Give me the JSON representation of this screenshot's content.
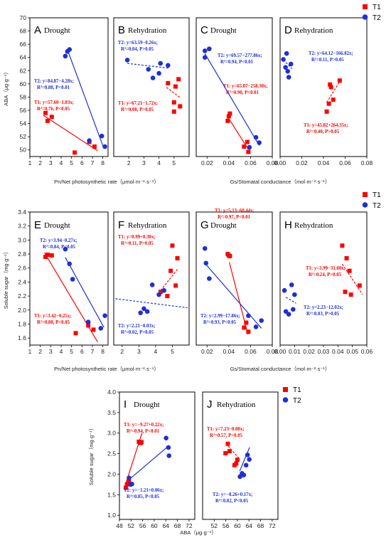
{
  "legend": {
    "t1_label": "T1",
    "t2_label": "T2"
  },
  "colors": {
    "t1": "#ff0000",
    "t2": "#1f2fd6"
  },
  "chart_data": [
    {
      "panel": "A",
      "condition": "Drought",
      "type": "scatter",
      "xlabel": "Pn/Net photosynthetic rate（μmol·m⁻²·s⁻¹）",
      "ylabel": "ABA（μg·g⁻¹）",
      "xlim": [
        1,
        8.5
      ],
      "ylim": [
        49,
        70
      ],
      "xticks": [
        1,
        2,
        3,
        4,
        5,
        6,
        7,
        8
      ],
      "yticks": [
        50,
        52,
        54,
        56,
        58,
        60,
        62,
        64,
        66,
        68,
        70
      ],
      "series": [
        {
          "name": "T1",
          "points": [
            [
              2.5,
              55.6
            ],
            [
              2.7,
              54.4
            ],
            [
              3.1,
              55.0
            ],
            [
              5.3,
              49.6
            ],
            [
              6.7,
              51.2
            ],
            [
              7.2,
              50.5
            ]
          ],
          "fit": {
            "slope": -1.03,
            "intercept": 57.6,
            "x_range": [
              2.3,
              7.5
            ],
            "style": "solid"
          },
          "equation": "T1: y=57.60−1.03x;",
          "stats": "R²=0.76, P<0.05"
        },
        {
          "name": "T2",
          "points": [
            [
              4.4,
              64.2
            ],
            [
              4.6,
              64.9
            ],
            [
              4.8,
              65.2
            ],
            [
              6.7,
              51.4
            ],
            [
              7.9,
              52.1
            ],
            [
              8.2,
              50.5
            ]
          ],
          "fit": {
            "slope": -4.28,
            "intercept": 84.87,
            "x_range": [
              4.6,
              8.1
            ],
            "style": "solid"
          },
          "equation": "T2: y=84.87−4.28x;",
          "stats": "R²=0.88, P<0.01"
        }
      ]
    },
    {
      "panel": "B",
      "condition": "Rehydration",
      "type": "scatter",
      "xlabel": "",
      "ylabel": "",
      "xlim": [
        1,
        6
      ],
      "ylim": [
        49,
        70
      ],
      "xticks": [
        2,
        3,
        4,
        5
      ],
      "yticks": [],
      "series": [
        {
          "name": "T1",
          "points": [
            [
              4.6,
              60.1
            ],
            [
              5.1,
              59.6
            ],
            [
              5.3,
              60.7
            ],
            [
              5.0,
              57.2
            ],
            [
              5.0,
              55.8
            ],
            [
              5.4,
              56.6
            ]
          ],
          "fit": {
            "slope": -1.72,
            "intercept": 67.21,
            "x_range": [
              4.5,
              5.4
            ],
            "style": "dashed"
          },
          "equation": "T1: y=67.21−1.72x;",
          "stats": "R²=0.08, P>0.05"
        },
        {
          "name": "T2",
          "points": [
            [
              1.9,
              63.6
            ],
            [
              3.3,
              62.2
            ],
            [
              3.6,
              60.9
            ],
            [
              4.0,
              61.6
            ],
            [
              4.1,
              63.1
            ],
            [
              4.6,
              62.8
            ]
          ],
          "fit": {
            "slope": -0.26,
            "intercept": 63.59,
            "x_range": [
              1.9,
              4.7
            ],
            "style": "dashed"
          },
          "equation": "T2: y=63.59−0.26x;",
          "stats": "R²=0.04, P>0.05"
        }
      ]
    },
    {
      "panel": "C",
      "condition": "Drought",
      "type": "scatter",
      "xlabel": "Gs/Stomatal conductance（mol·m⁻²·s⁻¹）",
      "ylabel": "",
      "xlim": [
        0.01,
        0.08
      ],
      "ylim": [
        49,
        70
      ],
      "xticks": [
        0.02,
        0.04,
        0.06,
        0.08
      ],
      "yticks": [],
      "series": [
        {
          "name": "T1",
          "points": [
            [
              0.039,
              54.4
            ],
            [
              0.04,
              55.1
            ],
            [
              0.041,
              55.5
            ],
            [
              0.054,
              50.5
            ],
            [
              0.057,
              51.2
            ],
            [
              0.058,
              49.7
            ]
          ],
          "fit": {
            "slope": -258.3,
            "intercept": 65.07,
            "x_range": [
              0.039,
              0.058
            ],
            "style": "solid"
          },
          "equation": "T1: y=65.07−258.30x;",
          "stats": "R²=0.90, P<0.01"
        },
        {
          "name": "T2",
          "points": [
            [
              0.018,
              64.0
            ],
            [
              0.018,
              65.0
            ],
            [
              0.022,
              65.3
            ],
            [
              0.059,
              50.4
            ],
            [
              0.065,
              51.9
            ],
            [
              0.068,
              51.1
            ]
          ],
          "fit": {
            "slope": -277.86,
            "intercept": 69.57,
            "x_range": [
              0.018,
              0.068
            ],
            "style": "solid"
          },
          "equation": "T2: y=69.57−277.86x;",
          "stats": "R²=0.94, P<0.01"
        }
      ]
    },
    {
      "panel": "D",
      "condition": "Rehydration",
      "type": "scatter",
      "xlabel": "",
      "ylabel": "",
      "xlim": [
        0,
        0.08
      ],
      "ylim": [
        49,
        70
      ],
      "xticks": [
        0.0,
        0.02,
        0.04,
        0.06,
        0.08
      ],
      "yticks": [],
      "series": [
        {
          "name": "T1",
          "points": [
            [
              0.043,
              55.8
            ],
            [
              0.045,
              57.0
            ],
            [
              0.046,
              59.9
            ],
            [
              0.047,
              59.5
            ],
            [
              0.049,
              57.6
            ],
            [
              0.055,
              60.5
            ]
          ],
          "fit": {
            "slope": 264.35,
            "intercept": 45.82,
            "x_range": [
              0.043,
              0.055
            ],
            "style": "dashed"
          },
          "equation": "T1: y=45.82+264.35x;",
          "stats": "R²=0.40, P>0.05"
        },
        {
          "name": "T2",
          "points": [
            [
              0.003,
              63.7
            ],
            [
              0.005,
              62.5
            ],
            [
              0.006,
              64.6
            ],
            [
              0.007,
              61.9
            ],
            [
              0.008,
              61.0
            ],
            [
              0.01,
              63.0
            ]
          ],
          "fit": {
            "slope": -166.82,
            "intercept": 64.12,
            "x_range": [
              0.003,
              0.011
            ],
            "style": "dashed"
          },
          "equation": "T2: y=64.12−166.82x;",
          "stats": "R²=0.11, P>0.05"
        }
      ]
    },
    {
      "panel": "E",
      "condition": "Drought",
      "type": "scatter",
      "xlabel": "Pn/Net photosynthetic rate（μmol·m⁻²·s⁻¹）",
      "ylabel": "Soluble sugar（mg·g⁻¹）",
      "xlim": [
        1,
        8.5
      ],
      "ylim": [
        1.5,
        3.4
      ],
      "xticks": [
        1,
        2,
        3,
        4,
        5,
        6,
        7,
        8
      ],
      "yticks": [
        1.6,
        1.8,
        2.0,
        2.2,
        2.4,
        2.6,
        2.8,
        3.0,
        3.2,
        3.4
      ],
      "series": [
        {
          "name": "T1",
          "points": [
            [
              2.5,
              2.76
            ],
            [
              2.7,
              2.79
            ],
            [
              3.1,
              2.78
            ],
            [
              5.4,
              1.67
            ],
            [
              6.6,
              1.78
            ],
            [
              7.1,
              1.72
            ]
          ],
          "fit": {
            "slope": -0.25,
            "intercept": 3.42,
            "x_range": [
              2.4,
              7.5
            ],
            "style": "solid"
          },
          "equation": "T1: y=3.42−0.25x;",
          "stats": "R²=0.88, P<0.05"
        },
        {
          "name": "T2",
          "points": [
            [
              4.4,
              2.87
            ],
            [
              4.8,
              2.66
            ],
            [
              5.1,
              2.44
            ],
            [
              6.6,
              1.83
            ],
            [
              7.8,
              1.74
            ],
            [
              8.2,
              1.92
            ]
          ],
          "fit": {
            "slope": -0.27,
            "intercept": 3.94,
            "x_range": [
              4.4,
              8.1
            ],
            "style": "solid"
          },
          "equation": "T2: y=3.94−0.27x;",
          "stats": "R²=0.84, P<0.05"
        }
      ]
    },
    {
      "panel": "F",
      "condition": "Rehydration",
      "type": "scatter",
      "xlabel": "",
      "ylabel": "",
      "xlim": [
        1.5,
        6
      ],
      "ylim": [
        1.5,
        3.4
      ],
      "xticks": [
        2,
        3,
        4,
        5
      ],
      "yticks": [],
      "series": [
        {
          "name": "T1",
          "points": [
            [
              4.3,
              2.26
            ],
            [
              4.7,
              2.2
            ],
            [
              4.9,
              2.56
            ],
            [
              5.0,
              2.92
            ],
            [
              5.2,
              2.35
            ],
            [
              5.3,
              2.74
            ]
          ],
          "fit": {
            "slope": 0.3,
            "intercept": 0.99,
            "x_range": [
              4.3,
              5.3
            ],
            "style": "dashed"
          },
          "equation": "T1: y=0.99+0.30x;",
          "stats": "R²=0.11, P>0.05"
        },
        {
          "name": "T2",
          "points": [
            [
              3.1,
              1.96
            ],
            [
              3.3,
              2.02
            ],
            [
              3.5,
              1.98
            ],
            [
              3.8,
              2.36
            ],
            [
              4.2,
              2.22
            ],
            [
              4.5,
              2.28
            ]
          ],
          "fit": {
            "slope": -0.03,
            "intercept": 2.21,
            "x_range": [
              1.6,
              5.9
            ],
            "style": "dashed"
          },
          "equation": "T2: y=2.21−0.03x;",
          "stats": "R²=0.02, P>0.05"
        }
      ]
    },
    {
      "panel": "G",
      "condition": "Drought",
      "type": "scatter",
      "xlabel": "Gs/Stomatal conductance（mol·m⁻²·s⁻¹）",
      "ylabel": "",
      "xlim": [
        0.01,
        0.08
      ],
      "ylim": [
        1.5,
        3.4
      ],
      "xticks": [
        0.02,
        0.04,
        0.06,
        0.08
      ],
      "yticks": [],
      "series": [
        {
          "name": "T1",
          "points": [
            [
              0.039,
              2.8
            ],
            [
              0.04,
              2.78
            ],
            [
              0.041,
              2.77
            ],
            [
              0.054,
              1.75
            ],
            [
              0.056,
              1.82
            ],
            [
              0.058,
              1.69
            ]
          ],
          "fit": {
            "slope": -60.44,
            "intercept": 5.13,
            "x_range": [
              0.0405,
              0.0575
            ],
            "style": "solid"
          },
          "equation": "T1: y=5.13−60.44x;",
          "stats": "R²=0.97, P<0.01"
        },
        {
          "name": "T2",
          "points": [
            [
              0.018,
              2.88
            ],
            [
              0.019,
              2.67
            ],
            [
              0.022,
              2.45
            ],
            [
              0.058,
              1.92
            ],
            [
              0.065,
              1.76
            ],
            [
              0.07,
              1.85
            ]
          ],
          "fit": {
            "slope": -17.86,
            "intercept": 2.99,
            "x_range": [
              0.018,
              0.07
            ],
            "style": "solid"
          },
          "equation": "T2: y=2.99−17.86x;",
          "stats": "R²=0.93, P<0.05"
        }
      ]
    },
    {
      "panel": "H",
      "condition": "Rehydration",
      "type": "scatter",
      "xlabel": "",
      "ylabel": "",
      "xlim": [
        0,
        0.06
      ],
      "ylim": [
        1.5,
        3.4
      ],
      "xticks": [
        0.0,
        0.01,
        0.02,
        0.03,
        0.04,
        0.05,
        0.06
      ],
      "yticks": [],
      "series": [
        {
          "name": "T1",
          "points": [
            [
              0.043,
              2.92
            ],
            [
              0.045,
              2.26
            ],
            [
              0.046,
              2.74
            ],
            [
              0.048,
              2.56
            ],
            [
              0.049,
              2.22
            ],
            [
              0.055,
              2.35
            ]
          ],
          "fit": {
            "slope": -31.0,
            "intercept": 3.99,
            "x_range": [
              0.043,
              0.057
            ],
            "style": "dashed"
          },
          "equation": "T1: y=3.99−31.00x;",
          "stats": "R²=0.24, P>0.05"
        },
        {
          "name": "T2",
          "points": [
            [
              0.003,
              2.28
            ],
            [
              0.004,
              1.98
            ],
            [
              0.006,
              1.94
            ],
            [
              0.008,
              2.36
            ],
            [
              0.009,
              2.01
            ],
            [
              0.01,
              2.22
            ]
          ],
          "fit": {
            "slope": -12.02,
            "intercept": 2.23,
            "x_range": [
              0.004,
              0.011
            ],
            "style": "dashed"
          },
          "equation": "T2: y=2.23−12.02x;",
          "stats": "R²=0.03, P>0.05"
        }
      ]
    },
    {
      "panel": "I",
      "condition": "Drought",
      "type": "scatter",
      "xlabel": "ABA（μg·g⁻¹）",
      "ylabel": "Soluble sugar（mg·g⁻¹）",
      "xlim": [
        48,
        74
      ],
      "ylim": [
        0.9,
        4.0
      ],
      "xticks": [
        48,
        52,
        56,
        60,
        64,
        68,
        72
      ],
      "yticks": [
        1.0,
        1.5,
        2.0,
        2.5,
        3.0,
        3.5,
        4.0
      ],
      "series": [
        {
          "name": "T1",
          "points": [
            [
              50.2,
              1.67
            ],
            [
              50.6,
              1.75
            ],
            [
              51.3,
              1.82
            ],
            [
              54.7,
              2.79
            ],
            [
              55.3,
              2.76
            ],
            [
              55.6,
              2.78
            ]
          ],
          "fit": {
            "slope": 0.22,
            "intercept": -9.27,
            "x_range": [
              50.0,
              55.8
            ],
            "style": "solid"
          },
          "equation": "T1: y=−9.27+0.22x;",
          "stats": "R²=0.94, P<0.01"
        },
        {
          "name": "T2",
          "points": [
            [
              51.3,
              1.91
            ],
            [
              51.9,
              1.75
            ],
            [
              52.3,
              1.76
            ],
            [
              64.1,
              2.88
            ],
            [
              64.9,
              2.65
            ],
            [
              65.1,
              2.45
            ]
          ],
          "fit": {
            "slope": 0.06,
            "intercept": -1.21,
            "x_range": [
              51.0,
              65.0
            ],
            "style": "solid"
          },
          "equation": "T2: y=−1.21+0.06x;",
          "stats": "R²=0.85, P<0.05"
        }
      ]
    },
    {
      "panel": "J",
      "condition": "Rehydration",
      "type": "scatter",
      "xlabel": "",
      "ylabel": "",
      "xlim": [
        48,
        74
      ],
      "ylim": [
        0.9,
        4.0
      ],
      "xticks": [
        52,
        56,
        60,
        64,
        68,
        72
      ],
      "yticks": [],
      "series": [
        {
          "name": "T1",
          "points": [
            [
              55.9,
              2.51
            ],
            [
              56.7,
              2.74
            ],
            [
              57.3,
              2.56
            ],
            [
              59.0,
              2.22
            ],
            [
              59.6,
              2.26
            ],
            [
              60.0,
              2.35
            ]
          ],
          "fit": {
            "slope": -0.08,
            "intercept": 7.23,
            "x_range": [
              56.8,
              60.6
            ],
            "style": "dashed"
          },
          "equation": "T1: y=7.23−0.08x;",
          "stats": "R²=0.57, P>0.05"
        },
        {
          "name": "T2",
          "points": [
            [
              60.9,
              1.94
            ],
            [
              61.6,
              2.02
            ],
            [
              62.2,
              1.98
            ],
            [
              63.0,
              2.22
            ],
            [
              63.5,
              2.47
            ],
            [
              64.1,
              2.36
            ]
          ],
          "fit": {
            "slope": 0.17,
            "intercept": -8.26,
            "x_range": [
              60.8,
              64.2
            ],
            "style": "solid"
          },
          "equation": "T2: y=−8.26+0.17x;",
          "stats": "R²=0.82, P<0.05"
        }
      ]
    }
  ]
}
